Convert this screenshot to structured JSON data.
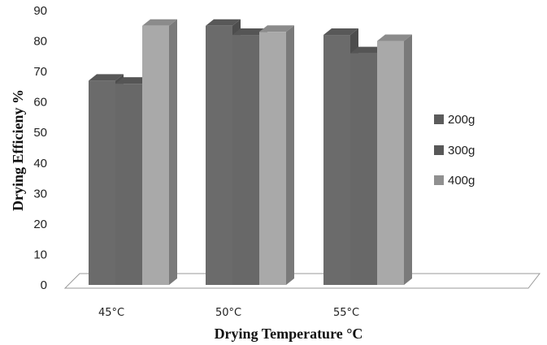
{
  "chart_data": {
    "type": "bar",
    "categories": [
      "45°C",
      "50°C",
      "55°C"
    ],
    "series": [
      {
        "name": "200g",
        "values": [
          67,
          85,
          82
        ],
        "color": "#6b6b6b"
      },
      {
        "name": "300g",
        "values": [
          66,
          82,
          76
        ],
        "color": "#686868"
      },
      {
        "name": "400g",
        "values": [
          85,
          83,
          80
        ],
        "color": "#a9a9a9"
      }
    ],
    "xlabel": "Drying Temperature °C",
    "ylabel": "Drying Efficieny %",
    "ylim": [
      0,
      90
    ],
    "yticks": [
      0,
      10,
      20,
      30,
      40,
      50,
      60,
      70,
      80,
      90
    ],
    "grid": false,
    "legend_position": "right",
    "style": "3d-column"
  }
}
